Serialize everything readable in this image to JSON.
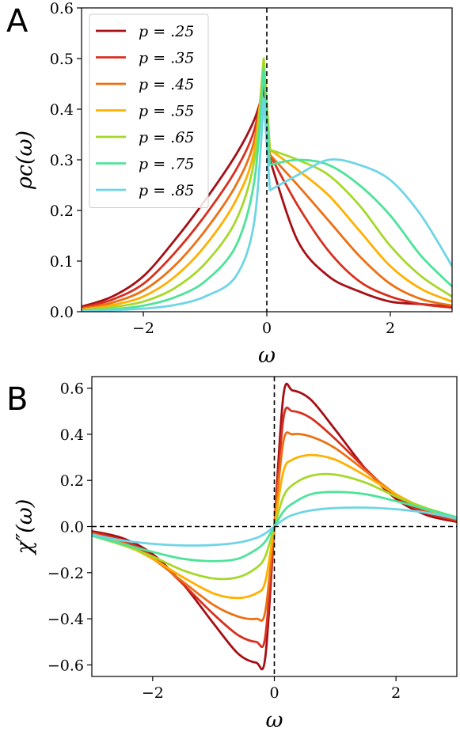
{
  "chart_data": [
    {
      "type": "line",
      "panel": "A",
      "xlabel": "ω",
      "ylabel": "ρc(ω)",
      "xlim": [
        -3,
        3
      ],
      "ylim": [
        0,
        0.6
      ],
      "xticks": [
        "−2",
        "0",
        "2"
      ],
      "yticks": [
        "0.0",
        "0.1",
        "0.2",
        "0.3",
        "0.4",
        "0.5",
        "0.6"
      ],
      "vertical_dashed_line_x": 0,
      "legend_placement": "top-left",
      "legend_entries": [
        "p = .25",
        "p = .35",
        "p = .45",
        "p = .55",
        "p = .65",
        "p = .75",
        "p = .85"
      ],
      "x": [
        -3,
        -2.5,
        -2,
        -1.5,
        -1,
        -0.5,
        -0.2,
        -0.05,
        0.05,
        0.5,
        1,
        1.5,
        2,
        2.5,
        3
      ],
      "series": [
        {
          "name": "p = .25",
          "color": "#a50f15",
          "values": [
            0.01,
            0.03,
            0.07,
            0.14,
            0.22,
            0.31,
            0.38,
            0.44,
            0.3,
            0.14,
            0.07,
            0.04,
            0.02,
            0.015,
            0.01
          ]
        },
        {
          "name": "p = .35",
          "color": "#d7301f",
          "values": [
            0.008,
            0.024,
            0.055,
            0.115,
            0.19,
            0.28,
            0.36,
            0.46,
            0.31,
            0.21,
            0.12,
            0.06,
            0.03,
            0.015,
            0.008
          ]
        },
        {
          "name": "p = .45",
          "color": "#ec7014",
          "values": [
            0.006,
            0.018,
            0.042,
            0.09,
            0.16,
            0.25,
            0.34,
            0.48,
            0.31,
            0.25,
            0.18,
            0.11,
            0.055,
            0.025,
            0.012
          ]
        },
        {
          "name": "p = .55",
          "color": "#ffb000",
          "values": [
            0.004,
            0.013,
            0.03,
            0.068,
            0.13,
            0.22,
            0.32,
            0.5,
            0.32,
            0.28,
            0.23,
            0.16,
            0.09,
            0.045,
            0.02
          ]
        },
        {
          "name": "p = .65",
          "color": "#a6d82b",
          "values": [
            0.003,
            0.009,
            0.02,
            0.046,
            0.095,
            0.18,
            0.3,
            0.5,
            0.32,
            0.3,
            0.27,
            0.21,
            0.13,
            0.07,
            0.03
          ]
        },
        {
          "name": "p = .75",
          "color": "#4de39a",
          "values": [
            0.002,
            0.005,
            0.012,
            0.028,
            0.06,
            0.13,
            0.26,
            0.48,
            0.29,
            0.3,
            0.29,
            0.25,
            0.19,
            0.11,
            0.05
          ]
        },
        {
          "name": "p = .85",
          "color": "#6fd5e6",
          "values": [
            0.001,
            0.003,
            0.006,
            0.013,
            0.03,
            0.07,
            0.18,
            0.42,
            0.24,
            0.27,
            0.3,
            0.29,
            0.26,
            0.19,
            0.09
          ]
        }
      ]
    },
    {
      "type": "line",
      "panel": "B",
      "xlabel": "ω",
      "ylabel": "χ″(ω)",
      "xlim": [
        -3,
        3
      ],
      "ylim": [
        -0.65,
        0.65
      ],
      "xticks": [
        "−2",
        "0",
        "2"
      ],
      "yticks": [
        "−0.6",
        "−0.4",
        "−0.2",
        "0.0",
        "0.2",
        "0.4",
        "0.6"
      ],
      "dashed_zero_lines": true,
      "x": [
        -3,
        -2.5,
        -2,
        -1.5,
        -1,
        -0.6,
        -0.3,
        -0.15,
        0,
        0.15,
        0.3,
        0.6,
        1,
        1.5,
        2,
        2.5,
        3
      ],
      "series": [
        {
          "name": "p = .25",
          "color": "#a50f15",
          "values": [
            -0.02,
            -0.05,
            -0.12,
            -0.25,
            -0.42,
            -0.55,
            -0.59,
            -0.57,
            0,
            0.57,
            0.59,
            0.55,
            0.42,
            0.25,
            0.12,
            0.05,
            0.02
          ]
        },
        {
          "name": "p = .35",
          "color": "#d7301f",
          "values": [
            -0.025,
            -0.06,
            -0.13,
            -0.25,
            -0.38,
            -0.47,
            -0.5,
            -0.48,
            0,
            0.47,
            0.5,
            0.47,
            0.38,
            0.25,
            0.13,
            0.06,
            0.025
          ]
        },
        {
          "name": "p = .45",
          "color": "#ec7014",
          "values": [
            -0.03,
            -0.07,
            -0.14,
            -0.24,
            -0.34,
            -0.39,
            -0.4,
            -0.37,
            0,
            0.37,
            0.4,
            0.39,
            0.34,
            0.24,
            0.14,
            0.07,
            0.03
          ]
        },
        {
          "name": "p = .55",
          "color": "#ffb000",
          "values": [
            -0.035,
            -0.075,
            -0.14,
            -0.22,
            -0.29,
            -0.31,
            -0.29,
            -0.24,
            0,
            0.24,
            0.29,
            0.31,
            0.29,
            0.22,
            0.14,
            0.075,
            0.035
          ]
        },
        {
          "name": "p = .65",
          "color": "#a6d82b",
          "values": [
            -0.04,
            -0.08,
            -0.13,
            -0.19,
            -0.225,
            -0.22,
            -0.18,
            -0.13,
            0,
            0.13,
            0.18,
            0.22,
            0.225,
            0.19,
            0.13,
            0.08,
            0.04
          ]
        },
        {
          "name": "p = .75",
          "color": "#4de39a",
          "values": [
            -0.04,
            -0.075,
            -0.11,
            -0.14,
            -0.15,
            -0.14,
            -0.1,
            -0.065,
            0,
            0.065,
            0.1,
            0.14,
            0.15,
            0.14,
            0.11,
            0.075,
            0.04
          ]
        },
        {
          "name": "p = .85",
          "color": "#6fd5e6",
          "values": [
            -0.035,
            -0.06,
            -0.075,
            -0.082,
            -0.08,
            -0.07,
            -0.05,
            -0.03,
            0,
            0.03,
            0.05,
            0.07,
            0.08,
            0.082,
            0.075,
            0.06,
            0.035
          ]
        }
      ]
    }
  ]
}
